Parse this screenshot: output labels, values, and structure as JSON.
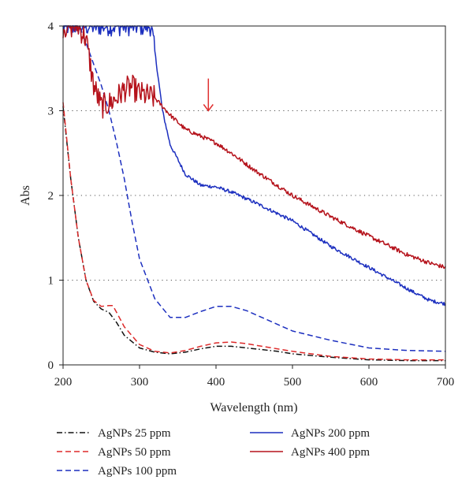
{
  "chart_data": {
    "type": "line",
    "xlabel": "Wavelength (nm)",
    "ylabel": "Abs",
    "xlim": [
      200,
      700
    ],
    "ylim": [
      0,
      4
    ],
    "x_ticks": [
      "200",
      "300",
      "400",
      "500",
      "600",
      "700"
    ],
    "y_ticks": [
      "0",
      "1",
      "2",
      "3",
      "4"
    ],
    "grid": "horizontal dotted at y = 1, 2, 3",
    "legend_position": "bottom, two columns",
    "annotation": {
      "type": "downward arrow",
      "x": 390,
      "y_from": 3.38,
      "y_to": 3.0,
      "color": "#e03030"
    },
    "series": [
      {
        "name": "AgNPs 25 ppm",
        "color": "#111111",
        "style": "dash-dot",
        "noise": 0,
        "x": [
          200,
          210,
          220,
          230,
          240,
          250,
          260,
          270,
          280,
          300,
          320,
          340,
          360,
          380,
          400,
          420,
          440,
          460,
          480,
          500,
          550,
          600,
          650,
          700
        ],
        "y": [
          3.05,
          2.2,
          1.5,
          1.0,
          0.75,
          0.66,
          0.62,
          0.5,
          0.35,
          0.2,
          0.15,
          0.13,
          0.15,
          0.19,
          0.22,
          0.22,
          0.2,
          0.18,
          0.16,
          0.13,
          0.09,
          0.06,
          0.05,
          0.05
        ]
      },
      {
        "name": "AgNPs 50 ppm",
        "color": "#dd2a2a",
        "style": "dashed",
        "noise": 0,
        "x": [
          200,
          210,
          220,
          230,
          240,
          250,
          260,
          265,
          270,
          280,
          300,
          320,
          340,
          360,
          380,
          400,
          420,
          440,
          460,
          480,
          500,
          550,
          600,
          650,
          700
        ],
        "y": [
          3.1,
          2.2,
          1.5,
          1.0,
          0.76,
          0.69,
          0.7,
          0.7,
          0.62,
          0.45,
          0.24,
          0.16,
          0.14,
          0.17,
          0.22,
          0.26,
          0.27,
          0.25,
          0.22,
          0.19,
          0.16,
          0.1,
          0.07,
          0.06,
          0.06
        ]
      },
      {
        "name": "AgNPs 100 ppm",
        "color": "#1c2fbf",
        "style": "dashed",
        "noise": 0,
        "x": [
          200,
          210,
          220,
          225,
          230,
          240,
          250,
          260,
          270,
          280,
          290,
          300,
          320,
          340,
          360,
          380,
          400,
          420,
          440,
          460,
          480,
          500,
          550,
          600,
          650,
          700
        ],
        "y": [
          4,
          4,
          4,
          3.92,
          3.8,
          3.55,
          3.3,
          3.0,
          2.62,
          2.2,
          1.7,
          1.25,
          0.78,
          0.56,
          0.56,
          0.63,
          0.69,
          0.69,
          0.64,
          0.56,
          0.48,
          0.4,
          0.29,
          0.2,
          0.17,
          0.16
        ]
      },
      {
        "name": "AgNPs 200 ppm",
        "color": "#1c2fbf",
        "style": "solid",
        "noise": 0.02,
        "x": [
          200,
          250,
          300,
          315,
          320,
          330,
          340,
          360,
          380,
          400,
          420,
          450,
          500,
          550,
          600,
          640,
          660,
          680,
          700
        ],
        "y": [
          4,
          4,
          4,
          4,
          3.7,
          3.0,
          2.6,
          2.25,
          2.12,
          2.1,
          2.04,
          1.92,
          1.7,
          1.4,
          1.15,
          0.95,
          0.85,
          0.76,
          0.72
        ]
      },
      {
        "name": "AgNPs 400 ppm",
        "color": "#b5121b",
        "style": "solid",
        "noise": 0.025,
        "x": [
          200,
          220,
          230,
          240,
          250,
          260,
          270,
          280,
          290,
          300,
          320,
          340,
          360,
          380,
          400,
          420,
          450,
          500,
          550,
          600,
          650,
          680,
          700
        ],
        "y": [
          4,
          4,
          3.85,
          3.3,
          3.05,
          3.08,
          3.15,
          3.25,
          3.28,
          3.2,
          3.15,
          2.95,
          2.78,
          2.7,
          2.62,
          2.5,
          2.3,
          2.0,
          1.75,
          1.52,
          1.3,
          1.2,
          1.15
        ]
      }
    ]
  }
}
